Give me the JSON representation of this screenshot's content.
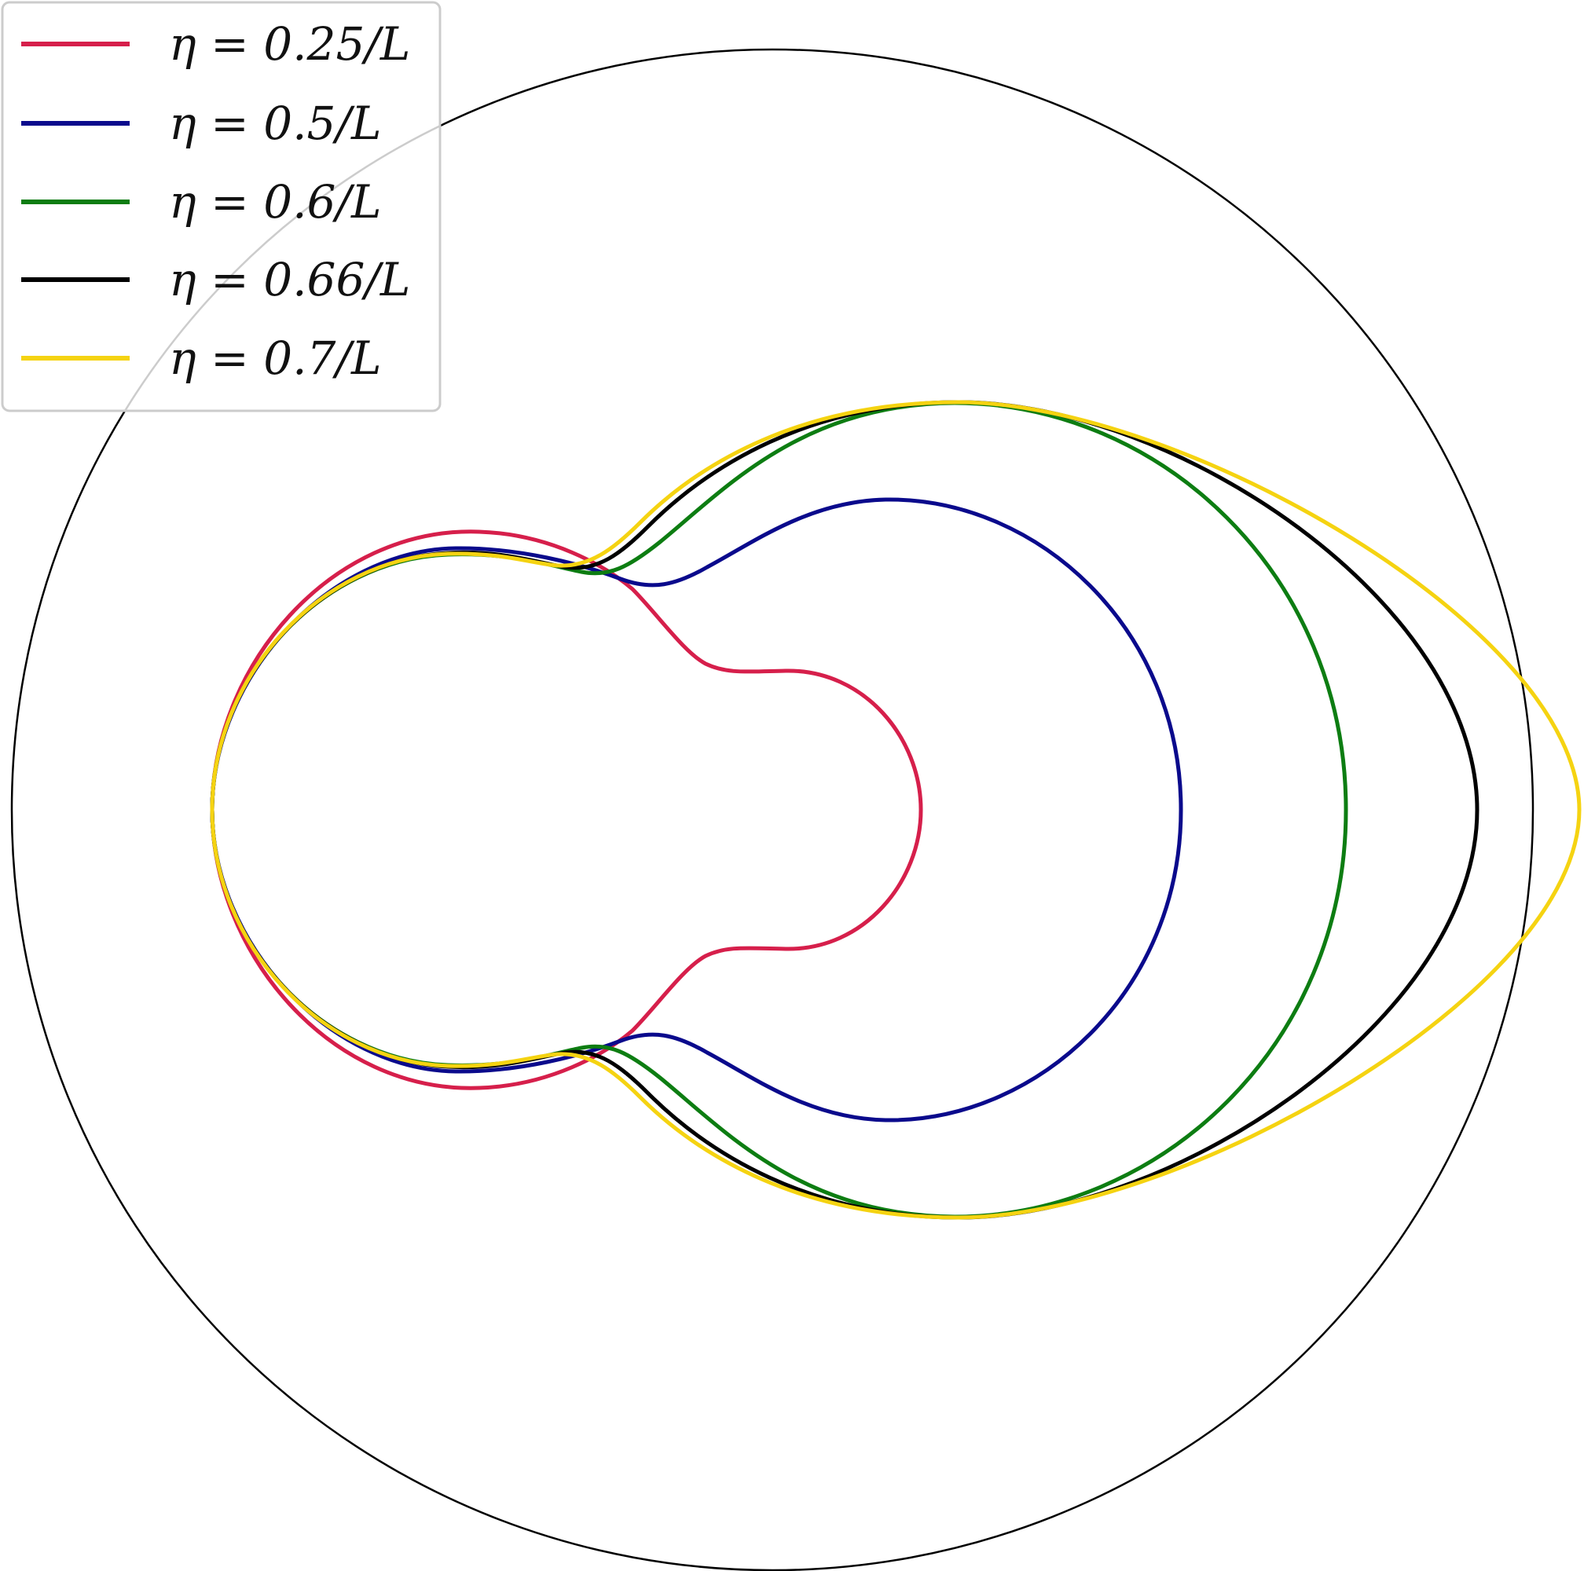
{
  "chart_data": {
    "type": "line",
    "title": "",
    "xlabel": "",
    "ylabel": "",
    "grid": false,
    "axes_visible": false,
    "legend_position": "top-left",
    "background": "#ffffff",
    "boundary": {
      "shape": "circle",
      "color": "#000000"
    },
    "series": [
      {
        "name": "η = 0.25/L",
        "color": "#d61f4b"
      },
      {
        "name": "η = 0.5/L",
        "color": "#0a0a8c"
      },
      {
        "name": "η = 0.6/L",
        "color": "#0d7d12"
      },
      {
        "name": "η = 0.66/L",
        "color": "#000000"
      },
      {
        "name": "η = 0.7/L",
        "color": "#f5d311"
      }
    ]
  }
}
